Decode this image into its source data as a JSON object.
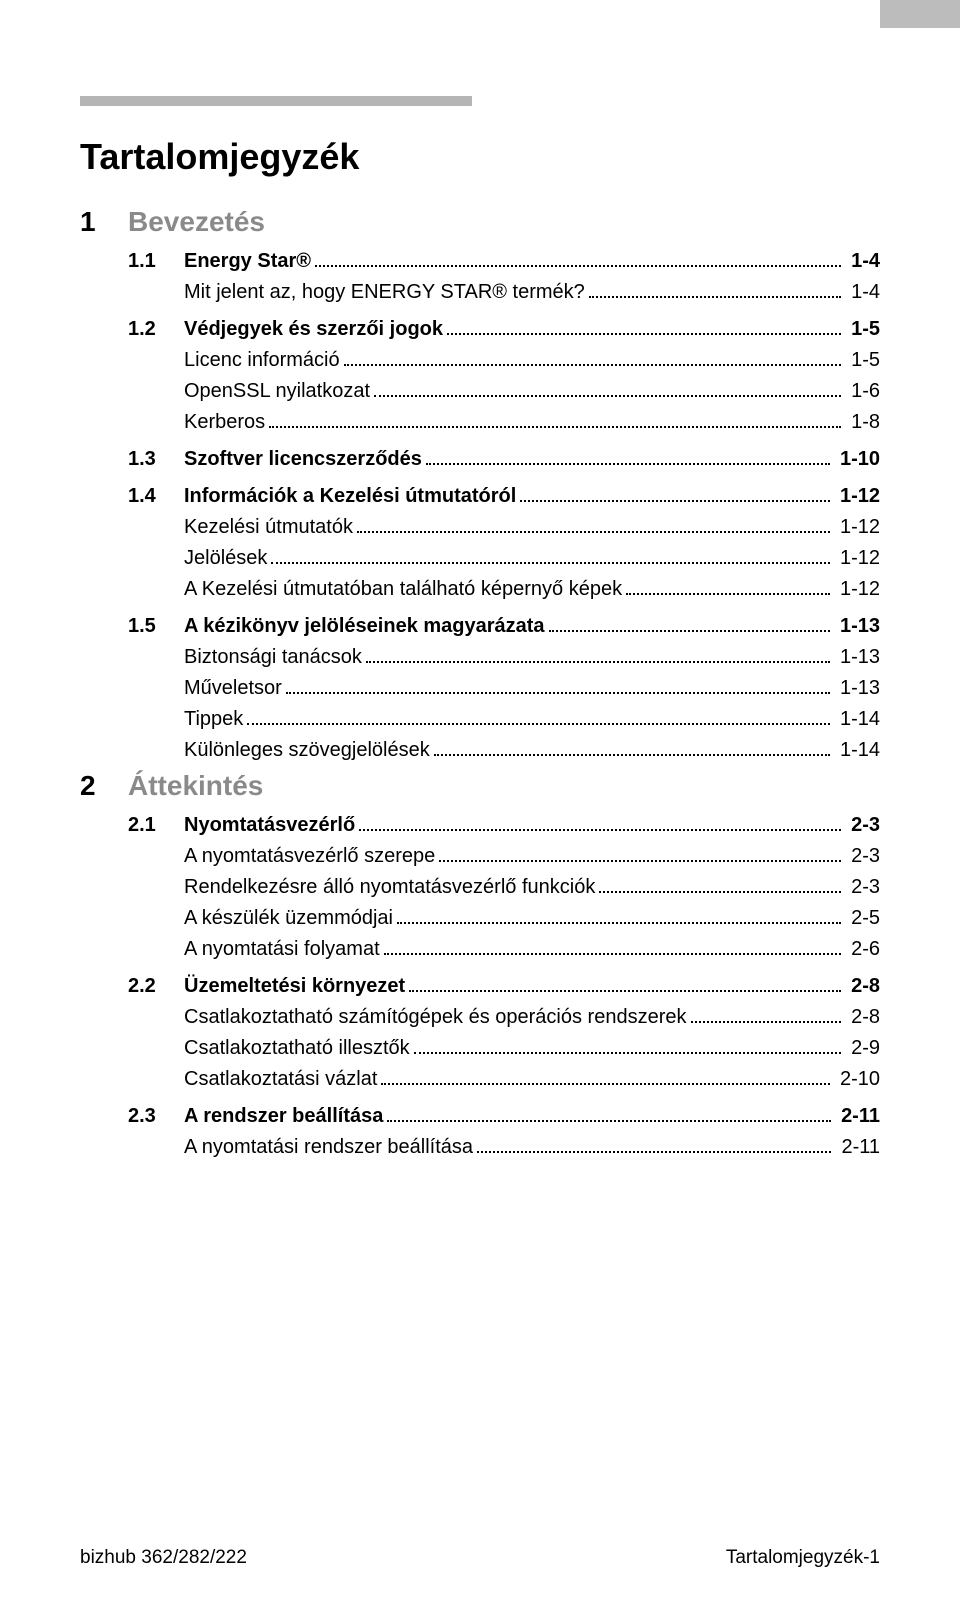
{
  "title": "Tartalomjegyzék",
  "chapters": [
    {
      "num": "1",
      "label": "Bevezetés",
      "sections": [
        {
          "num": "1.1",
          "label": "Energy Star®",
          "page": "1-4",
          "items": [
            {
              "label": "Mit jelent az, hogy ENERGY STAR® termék?",
              "page": "1-4"
            }
          ]
        },
        {
          "num": "1.2",
          "label": "Védjegyek és szerzői jogok",
          "page": "1-5",
          "items": [
            {
              "label": "Licenc információ",
              "page": "1-5"
            },
            {
              "label": "OpenSSL nyilatkozat",
              "page": "1-6"
            },
            {
              "label": "Kerberos",
              "page": "1-8"
            }
          ]
        },
        {
          "num": "1.3",
          "label": "Szoftver licencszerződés",
          "page": "1-10",
          "items": []
        },
        {
          "num": "1.4",
          "label": "Információk a Kezelési útmutatóról",
          "page": "1-12",
          "items": [
            {
              "label": "Kezelési útmutatók",
              "page": "1-12"
            },
            {
              "label": "Jelölések",
              "page": "1-12"
            },
            {
              "label": "A Kezelési útmutatóban található képernyő képek",
              "page": "1-12"
            }
          ]
        },
        {
          "num": "1.5",
          "label": "A kézikönyv jelöléseinek magyarázata",
          "page": "1-13",
          "items": [
            {
              "label": "Biztonsági tanácsok",
              "page": "1-13"
            },
            {
              "label": "Műveletsor",
              "page": "1-13"
            },
            {
              "label": "Tippek",
              "page": "1-14"
            },
            {
              "label": "Különleges szövegjelölések",
              "page": "1-14"
            }
          ]
        }
      ]
    },
    {
      "num": "2",
      "label": "Áttekintés",
      "sections": [
        {
          "num": "2.1",
          "label": "Nyomtatásvezérlő",
          "page": "2-3",
          "items": [
            {
              "label": "A nyomtatásvezérlő szerepe",
              "page": "2-3"
            },
            {
              "label": "Rendelkezésre álló nyomtatásvezérlő funkciók",
              "page": "2-3"
            },
            {
              "label": "A készülék üzemmódjai",
              "page": "2-5"
            },
            {
              "label": "A nyomtatási folyamat",
              "page": "2-6"
            }
          ]
        },
        {
          "num": "2.2",
          "label": "Üzemeltetési környezet",
          "page": "2-8",
          "items": [
            {
              "label": "Csatlakoztatható számítógépek és operációs rendszerek",
              "page": "2-8"
            },
            {
              "label": "Csatlakoztatható illesztők",
              "page": "2-9"
            },
            {
              "label": "Csatlakoztatási vázlat",
              "page": "2-10"
            }
          ]
        },
        {
          "num": "2.3",
          "label": "A rendszer beállítása",
          "page": "2-11",
          "items": [
            {
              "label": "A nyomtatási rendszer beállítása",
              "page": "2-11"
            }
          ]
        }
      ]
    }
  ],
  "footer": {
    "left": "bizhub 362/282/222",
    "right": "Tartalomjegyzék-1"
  }
}
